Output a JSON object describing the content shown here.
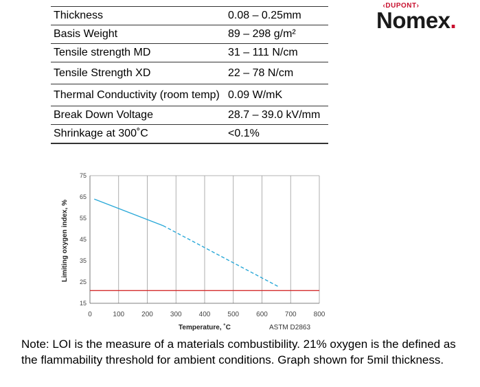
{
  "specs": {
    "rows": [
      {
        "property": "Thickness",
        "value": "0.08 – 0.25mm"
      },
      {
        "property": "Basis Weight",
        "value": "89 – 298 g/m²"
      },
      {
        "property": "Tensile strength MD",
        "value": "31 – 111 N/cm"
      },
      {
        "property": "Tensile Strength XD",
        "value": "22 – 78 N/cm"
      },
      {
        "property": "Thermal Conductivity (room temp)",
        "value": "0.09 W/mK"
      },
      {
        "property": "Break Down Voltage",
        "value": "28.7 – 39.0 kV/mm"
      },
      {
        "property": "Shrinkage at 300˚C",
        "value": "<0.1%"
      }
    ]
  },
  "brand": {
    "top": "DUPONT",
    "name": "Nomex",
    "mark": ".",
    "colors": {
      "red": "#c8102e",
      "text": "#1a1a1a"
    }
  },
  "chart_data": {
    "type": "line",
    "xlabel": "Temperature, ˚C",
    "ylabel": "Limiting oxygen index, %",
    "source_label": "ASTM D2863",
    "xlim": [
      0,
      800
    ],
    "ylim": [
      15,
      75
    ],
    "x_ticks": [
      0,
      100,
      200,
      300,
      400,
      500,
      600,
      700,
      800
    ],
    "y_ticks": [
      15,
      25,
      35,
      45,
      55,
      65,
      75
    ],
    "grid": "vertical",
    "series": [
      {
        "style": "solid",
        "color": "#29a8d8",
        "x": [
          15,
          255
        ],
        "y": [
          64,
          51.5
        ]
      },
      {
        "style": "dashed",
        "color": "#29a8d8",
        "x": [
          255,
          655
        ],
        "y": [
          51.5,
          23
        ]
      }
    ],
    "threshold": {
      "y": 21,
      "color": "#d42a2a"
    }
  },
  "note": {
    "text": "Note: LOI is the measure of a materials combustibility. 21% oxygen is the defined as the flammability threshold for ambient conditions. Graph shown for 5mil thickness."
  }
}
